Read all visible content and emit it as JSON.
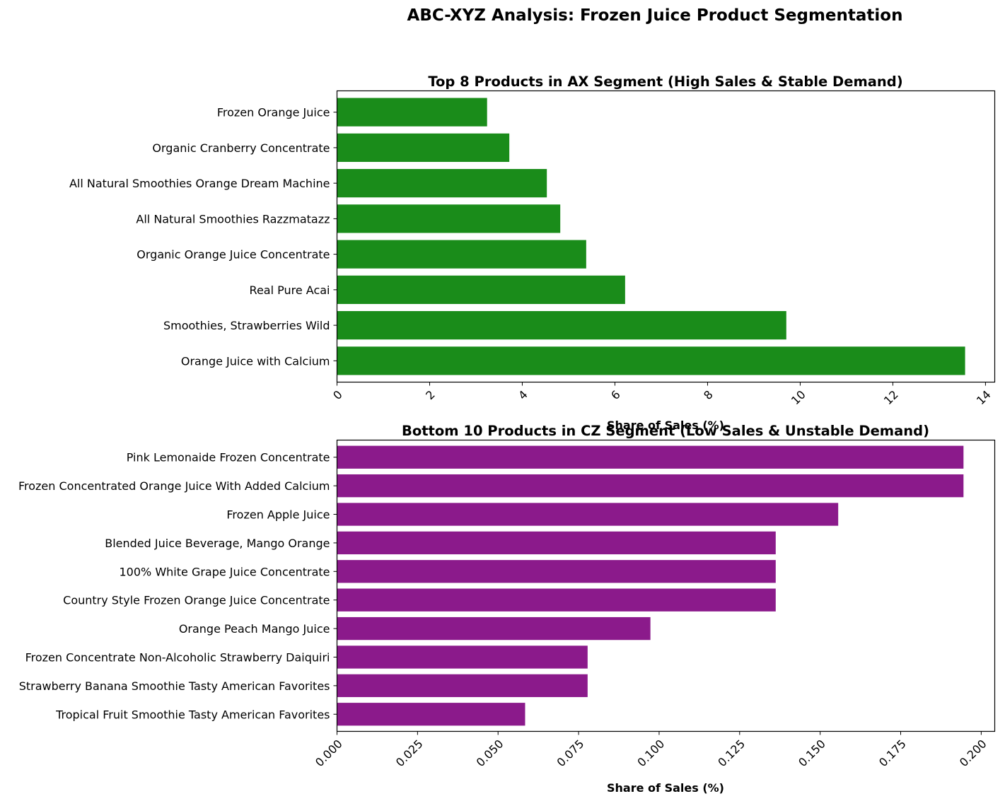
{
  "figure": {
    "title": "ABC-XYZ Analysis: Frozen Juice Product Segmentation"
  },
  "chart_data": [
    {
      "type": "bar",
      "orientation": "horizontal",
      "title": "Top 8 Products in AX Segment (High Sales & Stable Demand)",
      "xlabel": "Share of Sales (%)",
      "ylabel": "",
      "color": "#1a8c1a",
      "categories": [
        "Orange Juice with Calcium",
        "Smoothies, Strawberries Wild",
        "Real Pure Acai",
        "Organic Orange Juice Concentrate",
        "All Natural Smoothies Razzmatazz",
        "All Natural Smoothies Orange Dream Machine",
        "Organic Cranberry Concentrate",
        "Frozen Orange Juice"
      ],
      "values": [
        13.56,
        9.7,
        6.22,
        5.38,
        4.82,
        4.53,
        3.72,
        3.24
      ],
      "xlim": [
        0,
        14.2
      ],
      "xticks": [
        "0",
        "2",
        "4",
        "6",
        "8",
        "10",
        "12",
        "14"
      ],
      "xtick_values": [
        0,
        2,
        4,
        6,
        8,
        10,
        12,
        14
      ],
      "grid": false
    },
    {
      "type": "bar",
      "orientation": "horizontal",
      "title": "Bottom 10 Products in CZ Segment (Low Sales & Unstable Demand)",
      "xlabel": "Share of Sales (%)",
      "ylabel": "",
      "color": "#8b1a8b",
      "categories": [
        "Pink Lemonaide Frozen Concentrate",
        "Frozen Concentrated Orange Juice With Added Calcium",
        "Frozen Apple Juice",
        "Blended Juice Beverage, Mango Orange",
        "100% White Grape Juice Concentrate",
        "Country Style Frozen Orange Juice Concentrate",
        "Orange Peach Mango Juice",
        "Frozen Concentrate Non-Alcoholic Strawberry Daiquiri",
        "Strawberry Banana Smoothie Tasty American Favorites",
        "Tropical Fruit Smoothie Tasty American Favorites"
      ],
      "values": [
        0.1945,
        0.1945,
        0.1556,
        0.1362,
        0.1362,
        0.1362,
        0.0973,
        0.0778,
        0.0778,
        0.0584
      ],
      "xlim": [
        0,
        0.2042
      ],
      "xticks": [
        "0.000",
        "0.025",
        "0.050",
        "0.075",
        "0.100",
        "0.125",
        "0.150",
        "0.175",
        "0.200"
      ],
      "xtick_values": [
        0,
        0.025,
        0.05,
        0.075,
        0.1,
        0.125,
        0.15,
        0.175,
        0.2
      ],
      "grid": false
    }
  ]
}
